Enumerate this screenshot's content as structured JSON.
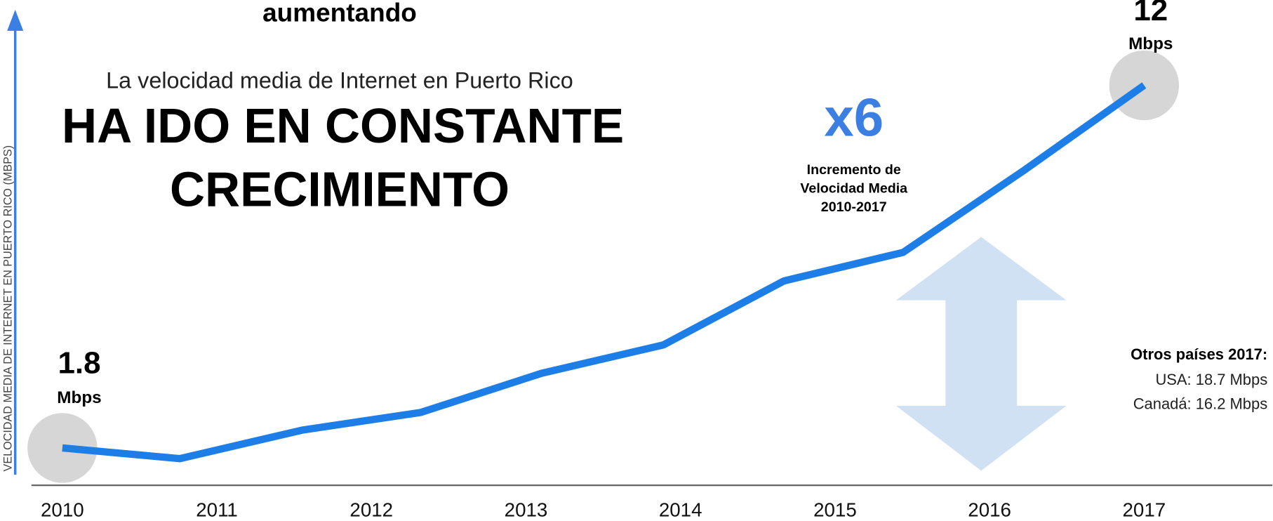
{
  "chart_data": {
    "type": "line",
    "title": "aumentando",
    "subtitle": "La velocidad media de Internet en Puerto Rico",
    "headline": [
      "HA IDO EN CONSTANTE",
      "CRECIMIENTO"
    ],
    "y_label": "VELOCIDAD MEDIA DE INTERNET EN PUERTO RICO (MBPS)",
    "unit_label": "Mbps",
    "growth": {
      "label": "x6",
      "caption": [
        "Incremento de",
        "Velocidad Media",
        "2010-2017"
      ]
    },
    "comparison": {
      "title": "Otros países 2017:",
      "lines": [
        "USA: 18.7 Mbps",
        "Canadá: 16.2 Mbps"
      ]
    },
    "series": [
      {
        "name": "Puerto Rico",
        "color": "#1e7ee8",
        "x": [
          2010,
          2010.76,
          2011.55,
          2012.32,
          2013.1,
          2013.89,
          2014.67,
          2015.44,
          2016.22,
          2017
        ],
        "values": [
          1.8,
          1.5,
          2.3,
          2.8,
          3.9,
          4.7,
          6.5,
          7.3,
          9.6,
          12
        ]
      }
    ],
    "xlim": [
      2009.8,
      2017.83
    ],
    "xticks": [
      2010,
      2011,
      2012,
      2013,
      2014,
      2015,
      2016,
      2017
    ],
    "ylim": [
      0.75,
      14.4
    ]
  }
}
